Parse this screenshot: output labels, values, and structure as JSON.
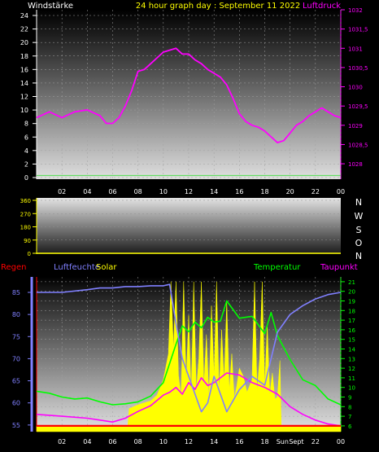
{
  "header": {
    "left_label": "Windstärke",
    "title": "24 hour graph day : September 11 2022",
    "right_label": "Luftdruck"
  },
  "colors": {
    "white": "#ffffff",
    "yellow": "#ffff00",
    "magenta": "#ff00ff",
    "green": "#00ff00",
    "blue": "#8080ff",
    "red": "#ff0000",
    "wind": "#66dd66"
  },
  "compass_labels": [
    "N",
    "W",
    "S",
    "O",
    "N"
  ],
  "legend": {
    "regen": "Regen",
    "luftfeuchte": "Luftfeuchte",
    "solar": "Solar",
    "temperatur": "Temperatur",
    "taupunkt": "Taupunkt"
  },
  "chart_data": [
    {
      "type": "line",
      "panel": "pressure-wind",
      "x_ticks": [
        "02",
        "04",
        "06",
        "08",
        "10",
        "12",
        "14",
        "16",
        "18",
        "20",
        "22",
        "00"
      ],
      "left_axis": {
        "label": "Windstärke",
        "ticks": [
          "0",
          "2",
          "4",
          "6",
          "8",
          "10",
          "12",
          "14",
          "16",
          "18",
          "20",
          "22",
          "24"
        ],
        "range": [
          0,
          24
        ]
      },
      "right_axis": {
        "label": "Luftdruck",
        "ticks": [
          "1028",
          "1028,5",
          "1029",
          "1029,5",
          "1030",
          "1030,5",
          "1031",
          "1031,5",
          "1032"
        ],
        "range": [
          1027.6,
          1032
        ]
      },
      "series": [
        {
          "name": "Luftdruck",
          "axis": "right",
          "x": [
            0,
            1,
            2,
            3,
            4,
            5,
            5.5,
            6,
            6.5,
            7,
            7.5,
            8,
            8.5,
            9,
            9.5,
            10,
            10.5,
            11,
            11.5,
            12,
            12.5,
            13,
            13.5,
            14,
            14.5,
            15,
            15.5,
            16,
            16.5,
            17,
            17.5,
            18,
            18.5,
            19,
            19.5,
            20,
            20.5,
            21,
            21.5,
            22,
            22.5,
            23,
            23.5,
            24
          ],
          "y": [
            1029.2,
            1029.35,
            1029.2,
            1029.35,
            1029.4,
            1029.25,
            1029.05,
            1029.05,
            1029.2,
            1029.5,
            1029.9,
            1030.4,
            1030.45,
            1030.6,
            1030.75,
            1030.9,
            1030.95,
            1031.0,
            1030.85,
            1030.85,
            1030.7,
            1030.6,
            1030.45,
            1030.35,
            1030.25,
            1030.05,
            1029.7,
            1029.3,
            1029.1,
            1029.0,
            1028.95,
            1028.85,
            1028.7,
            1028.55,
            1028.6,
            1028.8,
            1029.0,
            1029.1,
            1029.25,
            1029.35,
            1029.45,
            1029.35,
            1029.25,
            1029.2
          ]
        },
        {
          "name": "Windstärke",
          "axis": "left",
          "x": [
            0,
            24
          ],
          "y": [
            0.3,
            0.3
          ]
        }
      ]
    },
    {
      "type": "line",
      "panel": "wind-direction",
      "left_axis": {
        "ticks": [
          "0",
          "90",
          "180",
          "270",
          "360"
        ],
        "range": [
          0,
          360
        ]
      },
      "series": [
        {
          "name": "Windrichtung",
          "x": [
            0,
            24
          ],
          "y": [
            0,
            0
          ]
        }
      ]
    },
    {
      "type": "line",
      "panel": "weather",
      "x_ticks": [
        "02",
        "04",
        "06",
        "08",
        "10",
        "12",
        "14",
        "16",
        "18",
        "Sun",
        "Sept",
        "22",
        "00"
      ],
      "left_axis": {
        "label": "Luftfeuchte",
        "ticks": [
          "55",
          "60",
          "65",
          "70",
          "75",
          "80",
          "85"
        ],
        "range": [
          53.5,
          88.5
        ]
      },
      "right_axis": {
        "label": "Temperatur",
        "ticks": [
          "6",
          "7",
          "8",
          "9",
          "10",
          "11",
          "12",
          "13",
          "14",
          "15",
          "16",
          "17",
          "18",
          "19",
          "20",
          "21"
        ],
        "range": [
          5.4,
          21.5
        ]
      },
      "series": [
        {
          "name": "Luftfeuchte",
          "axis": "left",
          "x": [
            0,
            2,
            4,
            5,
            6,
            7,
            8,
            9,
            10,
            10.5,
            11,
            11.5,
            12,
            12.5,
            13,
            13.5,
            14,
            15,
            16,
            17,
            18,
            18.5,
            19,
            20,
            21,
            22,
            23,
            24
          ],
          "y": [
            85,
            85,
            85.6,
            86,
            86,
            86.3,
            86.3,
            86.5,
            86.5,
            86.8,
            78,
            70,
            66,
            62,
            58,
            60,
            66,
            58,
            63,
            66,
            64,
            70,
            76,
            80,
            82,
            83.5,
            84.5,
            85
          ]
        },
        {
          "name": "Temperatur",
          "axis": "right",
          "x": [
            0,
            1,
            2,
            3,
            4,
            5,
            6,
            7,
            8,
            9,
            10,
            10.5,
            11,
            11.5,
            12,
            12.5,
            13,
            13.5,
            14,
            14.5,
            15,
            16,
            17,
            18,
            18.5,
            19,
            20,
            21,
            22,
            23,
            24
          ],
          "y": [
            9.6,
            9.4,
            9.0,
            8.8,
            8.9,
            8.5,
            8.2,
            8.3,
            8.5,
            9.1,
            10.5,
            12.5,
            14.5,
            16.4,
            15.8,
            16.8,
            16.2,
            17.3,
            16.8,
            16.9,
            19.0,
            17.2,
            17.4,
            15.6,
            17.8,
            15.4,
            12.9,
            10.8,
            10.2,
            8.8,
            8.2
          ]
        },
        {
          "name": "Taupunkt",
          "axis": "right",
          "x": [
            0,
            2,
            4,
            5,
            6,
            7,
            8,
            9,
            10,
            10.5,
            11,
            11.5,
            12,
            12.5,
            13,
            13.5,
            14,
            15,
            16,
            17,
            18,
            19,
            20,
            21,
            22,
            23,
            24
          ],
          "y": [
            7.2,
            7.0,
            6.8,
            6.6,
            6.4,
            6.8,
            7.5,
            8.1,
            9.2,
            9.5,
            10.0,
            9.3,
            10.5,
            9.8,
            11.0,
            10.2,
            10.5,
            11.5,
            11.3,
            10.5,
            10.0,
            9.3,
            8.0,
            7.2,
            6.6,
            6.2,
            6.0
          ]
        },
        {
          "name": "Solar",
          "axis": "right",
          "x": [
            0,
            7.2,
            7.3,
            8,
            9,
            9.5,
            10,
            10.4,
            10.6,
            10.8,
            11,
            11.2,
            11.4,
            11.6,
            11.8,
            12,
            12.2,
            12.4,
            12.6,
            12.8,
            13,
            13.2,
            13.4,
            13.6,
            13.8,
            14,
            14.2,
            14.4,
            14.6,
            14.8,
            15,
            15.2,
            15.4,
            15.6,
            15.8,
            16,
            16.3,
            16.6,
            17,
            17.2,
            17.4,
            17.6,
            17.8,
            18,
            18.2,
            18.4,
            18.6,
            18.8,
            19,
            19.2,
            19.3,
            24
          ],
          "y": [
            6.0,
            6.0,
            7.8,
            8.2,
            8.6,
            9.2,
            10.8,
            13.5,
            21.0,
            14.0,
            21.0,
            11.2,
            9.0,
            21.0,
            10.5,
            17.5,
            8.8,
            21.0,
            9.5,
            13.0,
            21.0,
            10.0,
            15.5,
            8.8,
            18.5,
            11.0,
            21.0,
            9.2,
            16.0,
            10.5,
            19.0,
            9.5,
            13.5,
            8.8,
            10.2,
            12.0,
            11.2,
            9.5,
            10.8,
            21.0,
            9.6,
            13.0,
            21.0,
            10.0,
            16.5,
            9.2,
            11.5,
            8.8,
            9.0,
            12.8,
            6.0,
            6.0
          ]
        },
        {
          "name": "Regen",
          "axis": "right",
          "x": [
            0,
            24
          ],
          "y": [
            6.0,
            6.0
          ]
        }
      ]
    }
  ]
}
